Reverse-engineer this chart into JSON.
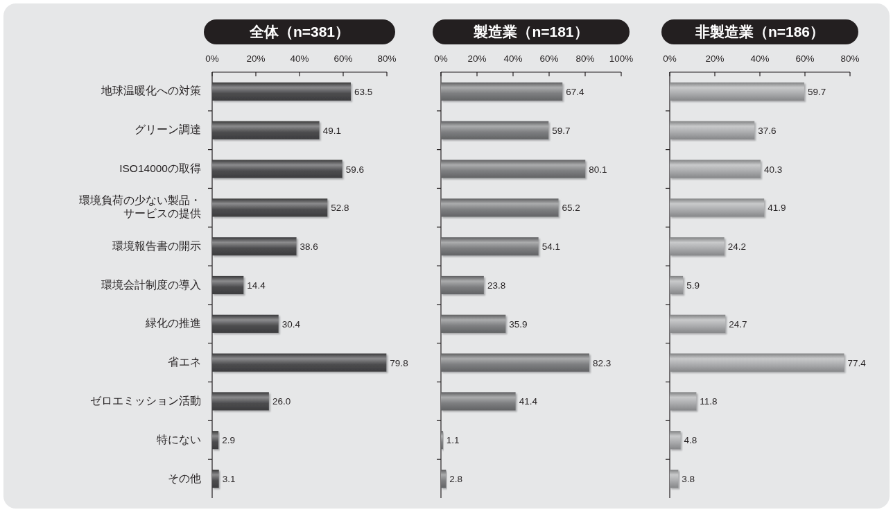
{
  "chart_data": [
    {
      "type": "bar",
      "orientation": "horizontal",
      "title": "全体（n=381）",
      "categories": [
        "地球温暖化への対策",
        "グリーン調達",
        "ISO14000の取得",
        "環境負荷の少ない製品・サービスの提供",
        "環境報告書の開示",
        "環境会計制度の導入",
        "緑化の推進",
        "省エネ",
        "ゼロエミッション活動",
        "特にない",
        "その他"
      ],
      "values": [
        63.5,
        49.1,
        59.6,
        52.8,
        38.6,
        14.4,
        30.4,
        79.8,
        26.0,
        2.9,
        3.1
      ],
      "value_labels": [
        "63.5",
        "49.1",
        "59.6",
        "52.8",
        "38.6",
        "14.4",
        "30.4",
        "79.8",
        "26.0",
        "2.9",
        "3.1"
      ],
      "color": "#4d4d4f",
      "xlim": [
        0,
        80
      ],
      "xticks": [
        {
          "value": 0,
          "label": "0%"
        },
        {
          "value": 20,
          "label": "20%"
        },
        {
          "value": 40,
          "label": "40%"
        },
        {
          "value": 60,
          "label": "60%"
        },
        {
          "value": 80,
          "label": "80%"
        }
      ]
    },
    {
      "type": "bar",
      "orientation": "horizontal",
      "title": "製造業（n=181）",
      "categories": [
        null,
        null,
        null,
        null,
        null,
        null,
        null,
        null,
        null,
        null,
        null
      ],
      "values": [
        67.4,
        59.7,
        80.1,
        65.2,
        54.1,
        23.8,
        35.9,
        82.3,
        41.4,
        1.1,
        2.8
      ],
      "value_labels": [
        "67.4",
        "59.7",
        "80.1",
        "65.2",
        "54.1",
        "23.8",
        "35.9",
        "82.3",
        "41.4",
        "1.1",
        "2.8"
      ],
      "color": "#7e7f81",
      "xlim": [
        0,
        100
      ],
      "xticks": [
        {
          "value": 0,
          "label": "0%"
        },
        {
          "value": 20,
          "label": "20%"
        },
        {
          "value": 40,
          "label": "40%"
        },
        {
          "value": 60,
          "label": "60%"
        },
        {
          "value": 80,
          "label": "80%"
        },
        {
          "value": 100,
          "label": "100%"
        }
      ]
    },
    {
      "type": "bar",
      "orientation": "horizontal",
      "title": "非製造業（n=186）",
      "categories": [
        null,
        null,
        null,
        null,
        null,
        null,
        null,
        null,
        null,
        null,
        null
      ],
      "values": [
        59.7,
        37.6,
        40.3,
        41.9,
        24.2,
        5.9,
        24.7,
        77.4,
        11.8,
        4.8,
        3.8
      ],
      "value_labels": [
        "59.7",
        "37.6",
        "40.3",
        "41.9",
        "24.2",
        "5.9",
        "24.7",
        "77.4",
        "11.8",
        "4.8",
        "3.8"
      ],
      "color": "#acadaf",
      "xlim": [
        0,
        80
      ],
      "xticks": [
        {
          "value": 0,
          "label": "0%"
        },
        {
          "value": 20,
          "label": "20%"
        },
        {
          "value": 40,
          "label": "40%"
        },
        {
          "value": 60,
          "label": "60%"
        },
        {
          "value": 80,
          "label": "80%"
        }
      ]
    }
  ]
}
